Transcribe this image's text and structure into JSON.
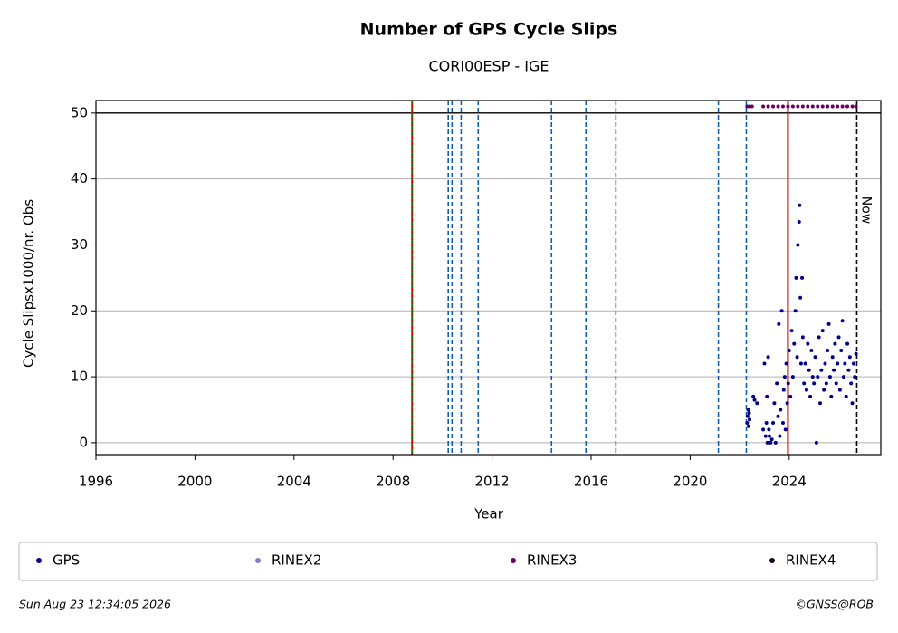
{
  "chart_data": {
    "type": "scatter",
    "title": "Number of GPS Cycle Slips",
    "subtitle": "CORI00ESP - IGE",
    "x_label": "Year",
    "y_label": "Cycle Slipsx1000/nr. Obs",
    "xlim": [
      1996,
      2027.7
    ],
    "ylim": [
      -1.8,
      51.9
    ],
    "xticks": [
      1996,
      2000,
      2004,
      2008,
      2012,
      2016,
      2020,
      2024
    ],
    "yticks": [
      0,
      10,
      20,
      30,
      40,
      50
    ],
    "grid": true,
    "limit_line": 50,
    "equipment_changes": [
      2008.77,
      2023.95
    ],
    "station_changes": [
      2010.23,
      2010.38,
      2010.75,
      2011.44,
      2014.4,
      2015.79,
      2017.0,
      2021.14,
      2022.27
    ],
    "now": {
      "x": 2026.73,
      "label": "Now"
    },
    "series": [
      {
        "name": "GPS",
        "color": "#00008b",
        "x": [
          2022.3,
          2022.32,
          2022.34,
          2022.36,
          2022.38,
          2022.4,
          2022.55,
          2022.6,
          2022.7,
          2022.95,
          2023.0,
          2023.05,
          2023.08,
          2023.1,
          2023.12,
          2023.15,
          2023.18,
          2023.2,
          2023.25,
          2023.3,
          2023.35,
          2023.4,
          2023.45,
          2023.5,
          2023.55,
          2023.58,
          2023.62,
          2023.65,
          2023.7,
          2023.75,
          2023.78,
          2023.82,
          2023.85,
          2023.88,
          2023.92,
          2023.96,
          2024.0,
          2024.05,
          2024.1,
          2024.15,
          2024.2,
          2024.25,
          2024.28,
          2024.32,
          2024.35,
          2024.4,
          2024.42,
          2024.45,
          2024.48,
          2024.52,
          2024.55,
          2024.6,
          2024.65,
          2024.7,
          2024.75,
          2024.8,
          2024.85,
          2024.9,
          2024.95,
          2025.0,
          2025.05,
          2025.1,
          2025.15,
          2025.2,
          2025.25,
          2025.3,
          2025.35,
          2025.4,
          2025.45,
          2025.5,
          2025.55,
          2025.6,
          2025.65,
          2025.7,
          2025.75,
          2025.8,
          2025.85,
          2025.9,
          2025.95,
          2026.0,
          2026.05,
          2026.1,
          2026.15,
          2026.2,
          2026.25,
          2026.3,
          2026.35,
          2026.4,
          2026.45,
          2026.5,
          2026.55,
          2026.6,
          2026.65,
          2026.7
        ],
        "values": [
          3,
          4,
          5,
          2.5,
          4.5,
          3.5,
          7,
          6.5,
          6,
          2,
          12,
          1,
          3,
          7,
          0,
          13,
          2,
          1,
          0,
          0.5,
          3,
          6,
          0,
          9,
          4,
          18,
          1,
          5,
          20,
          3,
          8,
          10,
          2,
          12,
          6,
          9,
          14,
          7,
          17,
          10,
          15,
          20,
          25,
          13,
          30,
          33.5,
          36,
          22,
          12,
          25,
          16,
          9,
          12,
          8,
          15,
          11,
          7,
          14,
          10,
          9,
          13,
          0,
          10,
          16,
          6,
          11,
          17,
          8,
          12,
          9,
          14,
          18,
          10,
          7,
          13,
          11,
          15,
          9,
          12,
          16,
          8,
          14,
          18.5,
          10,
          12,
          7,
          15,
          11,
          13,
          9,
          6,
          12,
          10,
          13.5
        ]
      },
      {
        "name": "RINEX2",
        "color": "#7f7fbf",
        "x": [],
        "values": []
      },
      {
        "name": "RINEX3",
        "color": "#6b005f",
        "x": [
          2022.3,
          2022.4,
          2022.5,
          2022.95,
          2023.15,
          2023.35,
          2023.55,
          2023.75,
          2023.95,
          2024.15,
          2024.35,
          2024.55,
          2024.75,
          2024.95,
          2025.15,
          2025.35,
          2025.55,
          2025.75,
          2025.95,
          2026.15,
          2026.35,
          2026.55,
          2026.7
        ],
        "values": [
          51,
          51,
          51,
          51,
          51,
          51,
          51,
          51,
          51,
          51,
          51,
          51,
          51,
          51,
          51,
          51,
          51,
          51,
          51,
          51,
          51,
          51,
          51
        ]
      },
      {
        "name": "RINEX4",
        "color": "#1a0020",
        "x": [],
        "values": []
      }
    ]
  },
  "footer": {
    "timestamp": "Sun Aug 23 12:34:05 2026",
    "copyright": "©GNSS@ROB"
  }
}
